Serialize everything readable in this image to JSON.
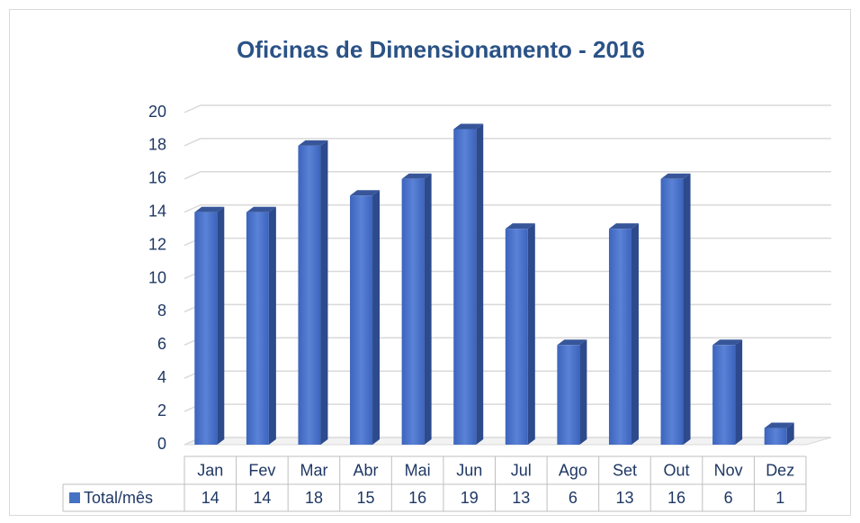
{
  "chart_data": {
    "type": "bar",
    "title": "Oficinas de Dimensionamento - 2016",
    "categories": [
      "Jan",
      "Fev",
      "Mar",
      "Abr",
      "Mai",
      "Jun",
      "Jul",
      "Ago",
      "Set",
      "Out",
      "Nov",
      "Dez"
    ],
    "series": [
      {
        "name": "Total/mês",
        "color": "#4472c4",
        "values": [
          14,
          14,
          18,
          15,
          16,
          19,
          13,
          6,
          13,
          16,
          6,
          1
        ]
      }
    ],
    "ylim": [
      0,
      20
    ],
    "yticks": [
      0,
      2,
      4,
      6,
      8,
      10,
      12,
      14,
      16,
      18,
      20
    ],
    "grid": true,
    "data_table": true
  }
}
